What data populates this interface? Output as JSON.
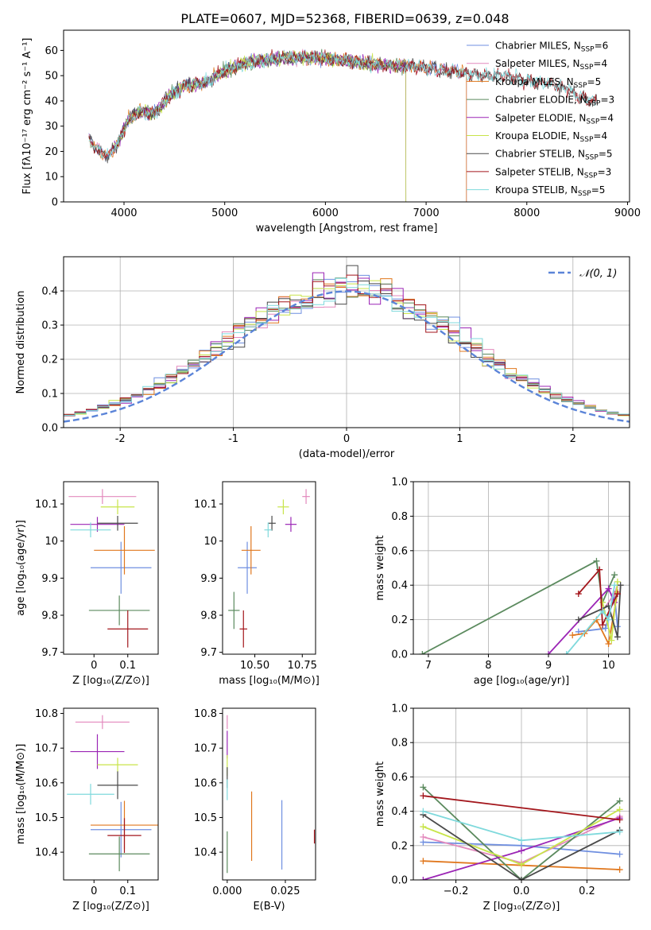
{
  "figure_title": "PLATE=0607, MJD=52368, FIBERID=0639, z=0.048",
  "colors": {
    "Chabrier MILES": "#6f8fe0",
    "Salpeter MILES": "#e389bd",
    "Kroupa MILES": "#e0771d",
    "Chabrier ELODIE": "#5b8a5e",
    "Salpeter ELODIE": "#9b25b5",
    "Kroupa ELODIE": "#c8e44a",
    "Chabrier STELIB": "#4a4a4a",
    "Salpeter STELIB": "#a3161c",
    "Kroupa STELIB": "#7fd9dc"
  },
  "chart_data": [
    {
      "id": "spectrum",
      "type": "line",
      "xlabel": "wavelength [Angstrom, rest frame]",
      "ylabel": "Flux [fλ10⁻¹⁷ erg cm⁻² s⁻¹ A⁻¹]",
      "xlim": [
        3400,
        9020
      ],
      "ylim": [
        0,
        68
      ],
      "xticks": [
        4000,
        5000,
        6000,
        7000,
        8000,
        9000
      ],
      "yticks": [
        0,
        10,
        20,
        30,
        40,
        50,
        60
      ],
      "legend": "top-right",
      "legend_entries": [
        {
          "name": "Chabrier MILES",
          "nssp": "6"
        },
        {
          "name": "Salpeter MILES",
          "nssp": "4"
        },
        {
          "name": "Kroupa MILES",
          "nssp": "5"
        },
        {
          "name": "Chabrier ELODIE",
          "nssp": "3"
        },
        {
          "name": "Salpeter ELODIE",
          "nssp": "4"
        },
        {
          "name": "Kroupa ELODIE",
          "nssp": "4"
        },
        {
          "name": "Chabrier STELIB",
          "nssp": "5"
        },
        {
          "name": "Salpeter STELIB",
          "nssp": "3"
        },
        {
          "name": "Kroupa STELIB",
          "nssp": "5"
        }
      ],
      "continuum": {
        "x": [
          3650,
          3750,
          3850,
          3950,
          4050,
          4150,
          4300,
          4450,
          4600,
          4800,
          5000,
          5200,
          5400,
          5600,
          5800,
          6000,
          6200,
          6400,
          6600,
          6800,
          7000,
          7200,
          7400,
          7600,
          7800,
          8000,
          8200,
          8400,
          8600
        ],
        "y": [
          25,
          20,
          18,
          24,
          33,
          36,
          35,
          42,
          46,
          47,
          52,
          55,
          56,
          57,
          57,
          57,
          56,
          55,
          54,
          54,
          53,
          52,
          51,
          50,
          50,
          48,
          47,
          45,
          40
        ]
      },
      "series_x_ranges": {
        "MILES": [
          3650,
          7400
        ],
        "ELODIE": [
          3900,
          6800
        ],
        "STELIB": [
          3650,
          8700
        ]
      }
    },
    {
      "id": "residuals",
      "type": "histogram",
      "xlabel": "(data-model)/error",
      "ylabel": "Normed distribution",
      "xlim": [
        -2.5,
        2.5
      ],
      "ylim": [
        0,
        0.5
      ],
      "xticks": [
        -2,
        -1,
        0,
        1,
        2
      ],
      "yticks": [
        0.0,
        0.1,
        0.2,
        0.3,
        0.4
      ],
      "bin_width": 0.1,
      "grid": true,
      "legend": "top-right",
      "reference_curve": {
        "name": "𝒩(0, 1)",
        "style": "dashed",
        "color": "#5b84d8"
      }
    },
    {
      "id": "age-vs-Z",
      "type": "errorbar",
      "xlabel": "Z [log₁₀(Z/Z⊙)]",
      "ylabel": "age  [log₁₀(age/yr)]",
      "xlim": [
        -0.09,
        0.19
      ],
      "ylim": [
        9.695,
        10.16
      ],
      "xticks": [
        0.0,
        0.1
      ],
      "yticks": [
        9.7,
        9.8,
        9.9,
        10.0,
        10.1
      ],
      "points": [
        {
          "model": "Chabrier MILES",
          "x": 0.08,
          "xerr": 0.09,
          "y": 9.928,
          "yerr": 0.07
        },
        {
          "model": "Salpeter MILES",
          "x": 0.025,
          "xerr": 0.1,
          "y": 10.12,
          "yerr": 0.02
        },
        {
          "model": "Kroupa MILES",
          "x": 0.09,
          "xerr": 0.09,
          "y": 9.975,
          "yerr": 0.065
        },
        {
          "model": "Chabrier ELODIE",
          "x": 0.075,
          "xerr": 0.09,
          "y": 9.813,
          "yerr": 0.04
        },
        {
          "model": "Salpeter ELODIE",
          "x": 0.01,
          "xerr": 0.08,
          "y": 10.045,
          "yerr": 0.02
        },
        {
          "model": "Kroupa ELODIE",
          "x": 0.07,
          "xerr": 0.05,
          "y": 10.092,
          "yerr": 0.02
        },
        {
          "model": "Chabrier STELIB",
          "x": 0.07,
          "xerr": 0.06,
          "y": 10.048,
          "yerr": 0.02
        },
        {
          "model": "Salpeter STELIB",
          "x": 0.1,
          "xerr": 0.06,
          "y": 9.763,
          "yerr": 0.05
        },
        {
          "model": "Kroupa STELIB",
          "x": -0.01,
          "xerr": 0.06,
          "y": 10.03,
          "yerr": 0.02
        }
      ]
    },
    {
      "id": "age-vs-mass",
      "type": "errorbar",
      "xlabel": "mass [log₁₀(M/M⊙)]",
      "ylabel": "",
      "xlim": [
        10.33,
        10.82
      ],
      "ylim": [
        9.695,
        10.16
      ],
      "xticks": [
        10.5,
        10.75
      ],
      "xticklabels": [
        "10.50",
        "10.75"
      ],
      "yticks": [
        9.7,
        9.8,
        9.9,
        10.0,
        10.1
      ],
      "points": [
        {
          "model": "Chabrier MILES",
          "x": 10.46,
          "xerr": 0.05,
          "y": 9.928,
          "yerr": 0.07
        },
        {
          "model": "Salpeter MILES",
          "x": 10.77,
          "xerr": 0.02,
          "y": 10.12,
          "yerr": 0.02
        },
        {
          "model": "Kroupa MILES",
          "x": 10.48,
          "xerr": 0.05,
          "y": 9.975,
          "yerr": 0.065
        },
        {
          "model": "Chabrier ELODIE",
          "x": 10.39,
          "xerr": 0.03,
          "y": 9.813,
          "yerr": 0.05
        },
        {
          "model": "Salpeter ELODIE",
          "x": 10.69,
          "xerr": 0.03,
          "y": 10.045,
          "yerr": 0.02
        },
        {
          "model": "Kroupa ELODIE",
          "x": 10.65,
          "xerr": 0.03,
          "y": 10.092,
          "yerr": 0.02
        },
        {
          "model": "Chabrier STELIB",
          "x": 10.59,
          "xerr": 0.02,
          "y": 10.048,
          "yerr": 0.02
        },
        {
          "model": "Salpeter STELIB",
          "x": 10.44,
          "xerr": 0.02,
          "y": 9.763,
          "yerr": 0.05
        },
        {
          "model": "Kroupa STELIB",
          "x": 10.57,
          "xerr": 0.02,
          "y": 10.03,
          "yerr": 0.02
        }
      ]
    },
    {
      "id": "massweight-vs-age",
      "type": "line",
      "xlabel": "age  [log₁₀(age/yr)]",
      "ylabel": "mass weight",
      "xlim": [
        6.75,
        10.35
      ],
      "ylim": [
        0.0,
        1.0
      ],
      "xticks": [
        7,
        8,
        9,
        10
      ],
      "yticks": [
        0.0,
        0.2,
        0.4,
        0.6,
        0.8,
        1.0
      ],
      "grid": true,
      "series": [
        {
          "model": "Chabrier MILES",
          "points": [
            [
              9.5,
              0.13
            ],
            [
              9.95,
              0.15
            ],
            [
              10.0,
              0.22
            ],
            [
              10.1,
              0.34
            ],
            [
              10.15,
              0.16
            ]
          ]
        },
        {
          "model": "Salpeter MILES",
          "points": [
            [
              9.9,
              0.25
            ],
            [
              10.1,
              0.35
            ],
            [
              10.15,
              0.4
            ]
          ]
        },
        {
          "model": "Kroupa MILES",
          "points": [
            [
              9.4,
              0.11
            ],
            [
              9.6,
              0.12
            ],
            [
              9.8,
              0.2
            ],
            [
              10.0,
              0.06
            ],
            [
              10.15,
              0.36
            ]
          ]
        },
        {
          "model": "Chabrier ELODIE",
          "points": [
            [
              6.9,
              0.0
            ],
            [
              9.8,
              0.54
            ],
            [
              9.9,
              0.3
            ],
            [
              10.1,
              0.46
            ]
          ]
        },
        {
          "model": "Salpeter ELODIE",
          "points": [
            [
              9.0,
              0.0
            ],
            [
              10.0,
              0.38
            ],
            [
              10.1,
              0.3
            ],
            [
              10.15,
              0.35
            ]
          ]
        },
        {
          "model": "Kroupa ELODIE",
          "points": [
            [
              9.9,
              0.3
            ],
            [
              10.05,
              0.08
            ],
            [
              10.15,
              0.42
            ]
          ]
        },
        {
          "model": "Chabrier STELIB",
          "points": [
            [
              9.5,
              0.2
            ],
            [
              10.0,
              0.28
            ],
            [
              10.15,
              0.1
            ],
            [
              10.2,
              0.4
            ]
          ]
        },
        {
          "model": "Salpeter STELIB",
          "points": [
            [
              9.5,
              0.35
            ],
            [
              9.85,
              0.49
            ],
            [
              9.9,
              0.17
            ],
            [
              10.15,
              0.35
            ]
          ]
        },
        {
          "model": "Kroupa STELIB",
          "points": [
            [
              9.3,
              0.0
            ],
            [
              9.9,
              0.25
            ],
            [
              10.0,
              0.2
            ],
            [
              10.1,
              0.4
            ]
          ]
        }
      ]
    },
    {
      "id": "mass-vs-Z",
      "type": "errorbar",
      "xlabel": "Z [log₁₀(Z/Z⊙)]",
      "ylabel": "mass [log₁₀(M/M⊙)]",
      "xlim": [
        -0.09,
        0.19
      ],
      "ylim": [
        10.32,
        10.815
      ],
      "xticks": [
        0.0,
        0.1
      ],
      "yticks": [
        10.4,
        10.5,
        10.6,
        10.7,
        10.8
      ],
      "points": [
        {
          "model": "Chabrier MILES",
          "x": 0.08,
          "xerr": 0.09,
          "y": 10.465,
          "yerr": 0.08
        },
        {
          "model": "Salpeter MILES",
          "x": 0.025,
          "xerr": 0.08,
          "y": 10.775,
          "yerr": 0.02
        },
        {
          "model": "Kroupa MILES",
          "x": 0.09,
          "xerr": 0.1,
          "y": 10.478,
          "yerr": 0.07
        },
        {
          "model": "Chabrier ELODIE",
          "x": 0.075,
          "xerr": 0.09,
          "y": 10.395,
          "yerr": 0.05
        },
        {
          "model": "Salpeter ELODIE",
          "x": 0.01,
          "xerr": 0.08,
          "y": 10.69,
          "yerr": 0.05
        },
        {
          "model": "Kroupa ELODIE",
          "x": 0.07,
          "xerr": 0.06,
          "y": 10.652,
          "yerr": 0.02
        },
        {
          "model": "Chabrier STELIB",
          "x": 0.07,
          "xerr": 0.06,
          "y": 10.593,
          "yerr": 0.04
        },
        {
          "model": "Salpeter STELIB",
          "x": 0.09,
          "xerr": 0.05,
          "y": 10.448,
          "yerr": 0.05
        },
        {
          "model": "Kroupa STELIB",
          "x": -0.01,
          "xerr": 0.07,
          "y": 10.567,
          "yerr": 0.03
        }
      ]
    },
    {
      "id": "mass-vs-ebv",
      "type": "errorbar",
      "xlabel": "E(B-V)",
      "ylabel": "",
      "xlim": [
        -0.002,
        0.038
      ],
      "ylim": [
        10.32,
        10.815
      ],
      "xticks": [
        0.0,
        0.025
      ],
      "xticklabels": [
        "0.000",
        "0.025"
      ],
      "yticks": [
        10.4,
        10.5,
        10.6,
        10.7,
        10.8
      ],
      "points": [
        {
          "model": "Chabrier MILES",
          "x": 0.0235,
          "y": 10.45,
          "yerr": 0.1
        },
        {
          "model": "Salpeter MILES",
          "x": 0.0,
          "y": 10.775,
          "yerr": 0.02
        },
        {
          "model": "Kroupa MILES",
          "x": 0.0105,
          "y": 10.475,
          "yerr": 0.1
        },
        {
          "model": "Chabrier ELODIE",
          "x": 0.0,
          "y": 10.4,
          "yerr": 0.06
        },
        {
          "model": "Salpeter ELODIE",
          "x": 0.0,
          "y": 10.71,
          "yerr": 0.04
        },
        {
          "model": "Kroupa ELODIE",
          "x": 0.0,
          "y": 10.65,
          "yerr": 0.03
        },
        {
          "model": "Chabrier STELIB",
          "x": 0.0,
          "y": 10.615,
          "yerr": 0.03
        },
        {
          "model": "Salpeter STELIB",
          "x": 0.0375,
          "y": 10.445,
          "yerr": 0.02
        },
        {
          "model": "Kroupa STELIB",
          "x": 0.0,
          "y": 10.58,
          "yerr": 0.03
        }
      ]
    },
    {
      "id": "massweight-vs-Z",
      "type": "line",
      "xlabel": "Z [log₁₀(Z/Z⊙)]",
      "ylabel": "mass weight",
      "xlim": [
        -0.33,
        0.33
      ],
      "ylim": [
        0.0,
        1.0
      ],
      "xticks": [
        -0.2,
        0.0,
        0.2
      ],
      "xticklabels": [
        "−0.2",
        "0.0",
        "0.2"
      ],
      "yticks": [
        0.0,
        0.2,
        0.4,
        0.6,
        0.8,
        1.0
      ],
      "grid": true,
      "series": [
        {
          "model": "Chabrier MILES",
          "points": [
            [
              -0.3,
              0.22
            ],
            [
              0.0,
              0.2
            ],
            [
              0.3,
              0.15
            ]
          ]
        },
        {
          "model": "Salpeter MILES",
          "points": [
            [
              -0.3,
              0.25
            ],
            [
              0.0,
              0.1
            ],
            [
              0.3,
              0.37
            ]
          ]
        },
        {
          "model": "Kroupa MILES",
          "points": [
            [
              -0.3,
              0.11
            ],
            [
              0.3,
              0.06
            ]
          ]
        },
        {
          "model": "Chabrier ELODIE",
          "points": [
            [
              -0.3,
              0.54
            ],
            [
              0.0,
              0.0
            ],
            [
              0.3,
              0.46
            ]
          ]
        },
        {
          "model": "Salpeter ELODIE",
          "points": [
            [
              -0.3,
              0.0
            ],
            [
              0.0,
              0.17
            ],
            [
              0.3,
              0.36
            ]
          ]
        },
        {
          "model": "Kroupa ELODIE",
          "points": [
            [
              -0.3,
              0.31
            ],
            [
              0.0,
              0.09
            ],
            [
              0.3,
              0.41
            ]
          ]
        },
        {
          "model": "Chabrier STELIB",
          "points": [
            [
              -0.3,
              0.38
            ],
            [
              0.0,
              0.0
            ],
            [
              0.3,
              0.29
            ]
          ]
        },
        {
          "model": "Salpeter STELIB",
          "points": [
            [
              -0.3,
              0.49
            ],
            [
              0.3,
              0.35
            ]
          ]
        },
        {
          "model": "Kroupa STELIB",
          "points": [
            [
              -0.3,
              0.4
            ],
            [
              0.0,
              0.23
            ],
            [
              0.3,
              0.28
            ]
          ]
        }
      ]
    }
  ]
}
